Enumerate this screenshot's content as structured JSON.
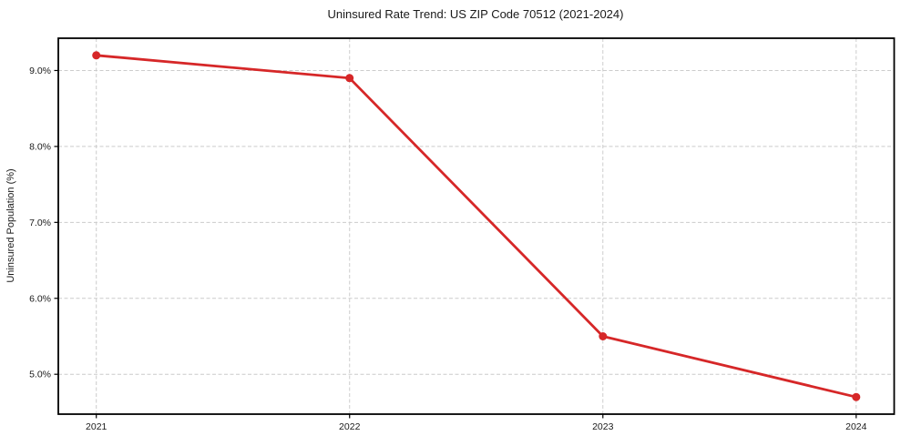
{
  "title": "Uninsured Rate Trend: US ZIP Code 70512 (2021-2024)",
  "chart_data": {
    "type": "line",
    "title": "Uninsured Rate Trend: US ZIP Code 70512 (2021-2024)",
    "xlabel": "",
    "ylabel": "Uninsured Population (%)",
    "x": [
      2021,
      2022,
      2023,
      2024
    ],
    "categories": [
      "2021",
      "2022",
      "2023",
      "2024"
    ],
    "series": [
      {
        "name": "Uninsured Population (%)",
        "values": [
          9.2,
          8.9,
          5.5,
          4.7
        ]
      }
    ],
    "xticks": [
      2021,
      2022,
      2023,
      2024
    ],
    "xtick_labels": [
      "2021",
      "2022",
      "2023",
      "2024"
    ],
    "yticks": [
      5.0,
      6.0,
      7.0,
      8.0,
      9.0
    ],
    "ytick_labels": [
      "5.0%",
      "6.0%",
      "7.0%",
      "8.0%",
      "9.0%"
    ],
    "xlim": [
      2020.85,
      2024.15
    ],
    "ylim": [
      4.475,
      9.425
    ],
    "grid": true,
    "legend": "none",
    "line_color": "#d62728",
    "marker_color": "#d62728",
    "grid_color": "#cccccc",
    "spine_color": "#000000",
    "background_color": "#ffffff"
  }
}
